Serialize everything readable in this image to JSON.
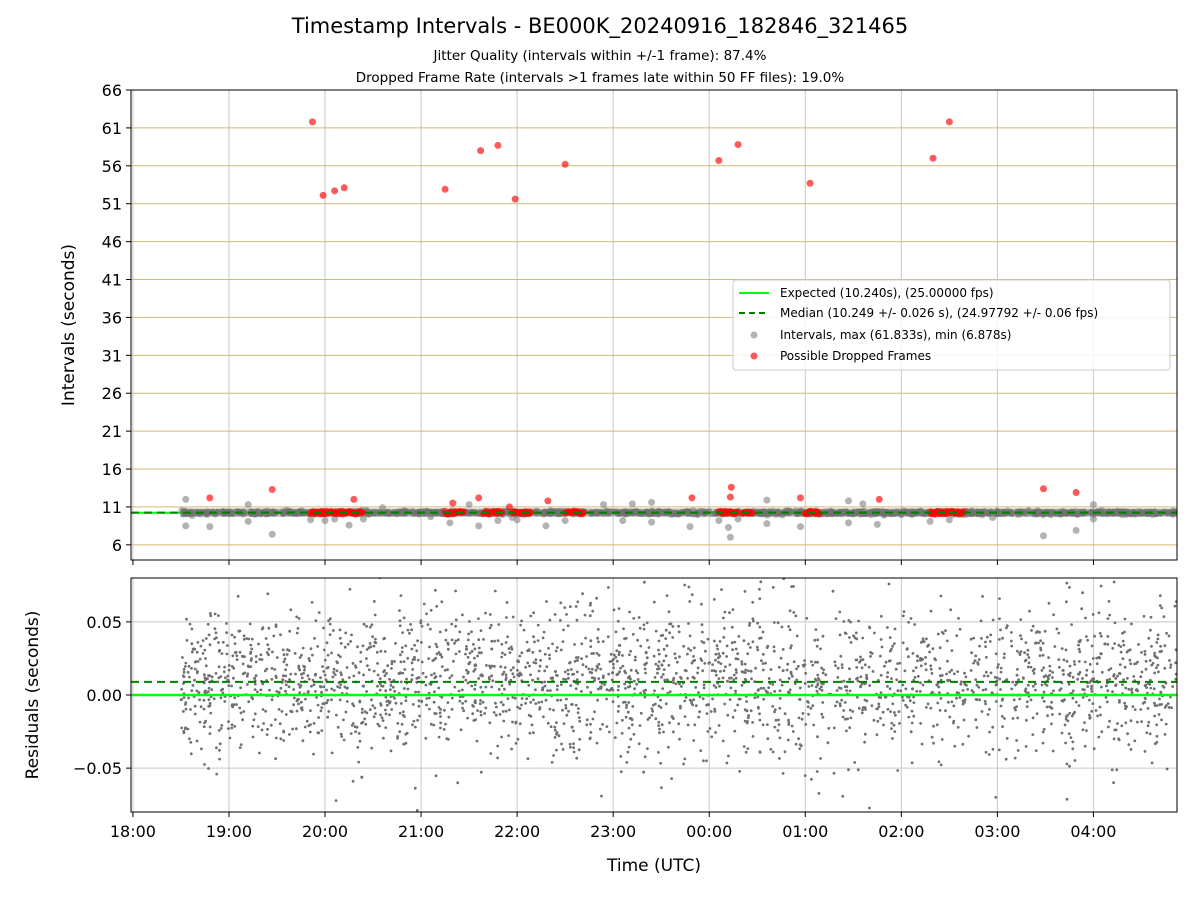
{
  "header": {
    "title": "Timestamp Intervals - BE000K_20240916_182846_321465",
    "subtitle1": "Jitter Quality (intervals within +/-1 frame): 87.4%",
    "subtitle2": "Dropped Frame Rate (intervals >1 frames late within 50 FF files): 19.0%"
  },
  "chart_data": [
    {
      "type": "scatter",
      "panel": "top",
      "ylabel": "Intervals (seconds)",
      "xlabel": "",
      "ylim": [
        4,
        66
      ],
      "yticks": [
        6,
        11,
        16,
        21,
        26,
        31,
        36,
        41,
        46,
        51,
        56,
        61,
        66
      ],
      "x_hours_range": [
        17.98,
        28.87
      ],
      "xticks": [
        "18:00",
        "19:00",
        "20:00",
        "21:00",
        "22:00",
        "23:00",
        "00:00",
        "01:00",
        "02:00",
        "03:00",
        "04:00"
      ],
      "legend_position": "center-right",
      "legend": [
        "Expected (10.240s), (25.00000 fps)",
        "Median (10.249 +/- 0.026 s), (24.97792 +/- 0.06 fps)",
        "Intervals, max (61.833s), min (6.878s)",
        "Possible Dropped Frames"
      ],
      "expected_value": 10.24,
      "median_value": 10.249,
      "colors": {
        "expected": "#00ff00",
        "median": "#008000",
        "intervals": "#808080",
        "dropped": "#ff0000",
        "grid_h": "#d4b874",
        "grid_v": "#c8c8c8"
      },
      "dropped_frames_high": [
        [
          19.87,
          61.8
        ],
        [
          19.98,
          52.1
        ],
        [
          20.1,
          52.7
        ],
        [
          20.2,
          53.1
        ],
        [
          21.25,
          52.9
        ],
        [
          21.62,
          58.0
        ],
        [
          21.8,
          58.7
        ],
        [
          21.98,
          51.6
        ],
        [
          22.5,
          56.2
        ],
        [
          24.1,
          56.7
        ],
        [
          24.3,
          58.8
        ],
        [
          25.05,
          53.7
        ],
        [
          26.33,
          57.0
        ],
        [
          26.5,
          61.8
        ]
      ],
      "dropped_frames_low": [
        [
          18.8,
          12.2
        ],
        [
          19.45,
          13.3
        ],
        [
          20.3,
          12.0
        ],
        [
          21.33,
          11.5
        ],
        [
          21.6,
          12.2
        ],
        [
          21.92,
          11.0
        ],
        [
          22.32,
          11.8
        ],
        [
          23.82,
          12.2
        ],
        [
          24.22,
          12.3
        ],
        [
          24.23,
          13.6
        ],
        [
          24.95,
          12.2
        ],
        [
          25.77,
          12.0
        ],
        [
          27.48,
          13.4
        ],
        [
          27.82,
          12.9
        ]
      ],
      "dropped_frame_clusters": [
        [
          19.85,
          20.4
        ],
        [
          21.25,
          21.45
        ],
        [
          21.65,
          21.85
        ],
        [
          21.95,
          22.15
        ],
        [
          22.5,
          22.7
        ],
        [
          24.1,
          24.3
        ],
        [
          24.35,
          24.45
        ],
        [
          25.0,
          25.15
        ],
        [
          26.3,
          26.65
        ]
      ],
      "intervals_outliers": [
        [
          18.55,
          12.0
        ],
        [
          18.55,
          8.5
        ],
        [
          18.8,
          8.4
        ],
        [
          19.2,
          11.3
        ],
        [
          19.2,
          9.1
        ],
        [
          19.45,
          7.4
        ],
        [
          19.85,
          9.3
        ],
        [
          20.0,
          9.2
        ],
        [
          20.1,
          9.4
        ],
        [
          20.25,
          8.6
        ],
        [
          20.4,
          9.4
        ],
        [
          20.6,
          10.9
        ],
        [
          21.1,
          9.7
        ],
        [
          21.3,
          8.9
        ],
        [
          21.5,
          11.3
        ],
        [
          21.6,
          8.5
        ],
        [
          21.8,
          9.2
        ],
        [
          21.95,
          9.6
        ],
        [
          22.0,
          9.3
        ],
        [
          22.3,
          8.5
        ],
        [
          22.5,
          9.2
        ],
        [
          22.9,
          11.3
        ],
        [
          23.1,
          9.2
        ],
        [
          23.2,
          11.4
        ],
        [
          23.4,
          9.0
        ],
        [
          23.4,
          11.6
        ],
        [
          23.8,
          8.4
        ],
        [
          24.1,
          9.2
        ],
        [
          24.2,
          8.3
        ],
        [
          24.22,
          7.0
        ],
        [
          24.3,
          9.4
        ],
        [
          24.6,
          8.8
        ],
        [
          24.6,
          11.9
        ],
        [
          24.95,
          8.4
        ],
        [
          25.45,
          8.9
        ],
        [
          25.45,
          11.8
        ],
        [
          25.6,
          11.4
        ],
        [
          25.75,
          8.7
        ],
        [
          26.3,
          9.1
        ],
        [
          26.5,
          9.3
        ],
        [
          26.95,
          9.6
        ],
        [
          27.48,
          7.2
        ],
        [
          27.82,
          7.9
        ],
        [
          28.0,
          9.4
        ],
        [
          28.0,
          11.3
        ]
      ]
    },
    {
      "type": "scatter",
      "panel": "bottom",
      "ylabel": "Residuals (seconds)",
      "xlabel": "Time (UTC)",
      "ylim": [
        -0.08,
        0.08
      ],
      "yticks": [
        0.05,
        0.0,
        -0.05
      ],
      "ytick_labels": [
        "0.05",
        "0.00",
        "−0.05"
      ],
      "x_hours_range": [
        17.98,
        28.87
      ],
      "xticks": [
        "18:00",
        "19:00",
        "20:00",
        "21:00",
        "22:00",
        "23:00",
        "00:00",
        "01:00",
        "02:00",
        "03:00",
        "04:00"
      ],
      "expected_residual": 0.0,
      "median_residual": 0.009,
      "data_x_range": [
        18.5,
        28.87
      ],
      "residual_spread": 0.026,
      "colors": {
        "expected": "#00ff00",
        "median": "#008000",
        "points": "#707070"
      }
    }
  ]
}
